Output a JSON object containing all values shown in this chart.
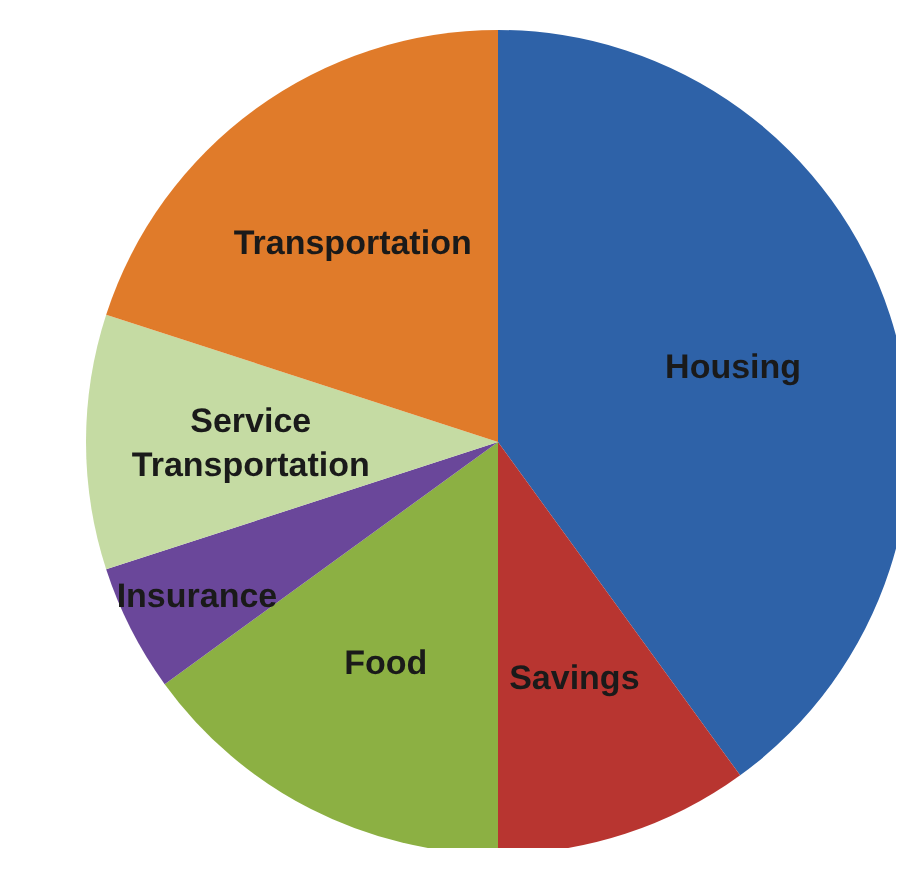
{
  "chart_data": {
    "type": "pie",
    "categories": [
      "Housing",
      "Savings",
      "Food",
      "Insurance",
      "Service Transportation",
      "Transportation"
    ],
    "values": [
      40,
      10,
      15,
      5,
      10,
      20
    ],
    "colors": [
      "#2e62a8",
      "#b83530",
      "#8cb043",
      "#6a479a",
      "#c5dba3",
      "#e07b2a"
    ],
    "legend": false
  }
}
